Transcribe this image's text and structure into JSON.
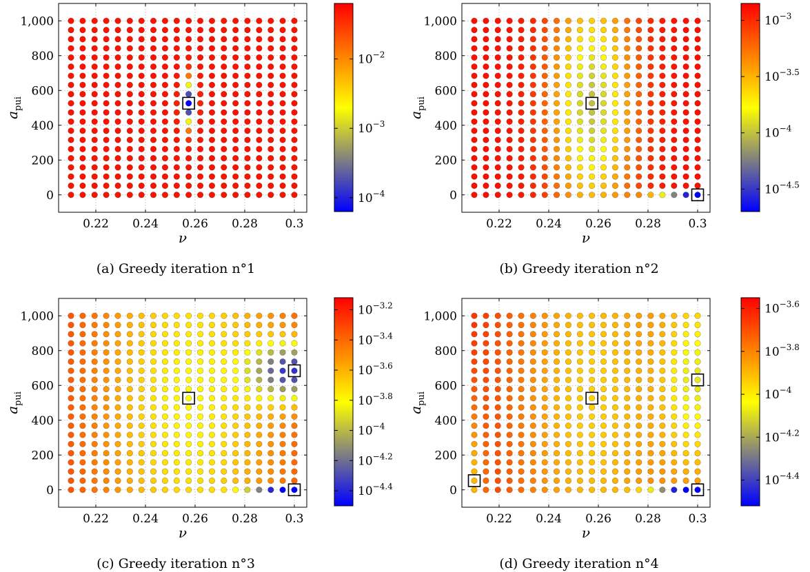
{
  "chart_data": [
    {
      "type": "scatter",
      "caption": "(a) Greedy iteration n°1",
      "xlabel": "ν",
      "ylabel_main": "a",
      "ylabel_sub": "pui",
      "xlim": [
        0.205,
        0.305
      ],
      "ylim": [
        -100,
        1100
      ],
      "xticks": [
        "0.22",
        "0.24",
        "0.26",
        "0.28",
        "0.3"
      ],
      "xtick_values": [
        0.22,
        0.24,
        0.26,
        0.28,
        0.3
      ],
      "yticks": [
        "0",
        "200",
        "400",
        "600",
        "800",
        "1,000"
      ],
      "ytick_values": [
        0,
        200,
        400,
        600,
        800,
        1000
      ],
      "grid": true,
      "x": [
        0.21,
        0.2147,
        0.2195,
        0.2242,
        0.2289,
        0.2337,
        0.2384,
        0.2432,
        0.2479,
        0.2526,
        0.2574,
        0.2621,
        0.2668,
        0.2716,
        0.2763,
        0.2811,
        0.2858,
        0.2905,
        0.2953,
        0.3
      ],
      "y": [
        0,
        52.6,
        105.3,
        157.9,
        210.5,
        263.2,
        315.8,
        368.4,
        421.1,
        473.7,
        526.3,
        578.9,
        631.6,
        684.2,
        736.8,
        789.5,
        842.1,
        894.7,
        947.4,
        1000
      ],
      "colorbar": {
        "log_min": -4.2,
        "log_max": -1.2,
        "ticks": [
          -4,
          -3,
          -2
        ]
      },
      "error_model": {
        "base": -1.3,
        "dips": [
          {
            "x": 0.2574,
            "y": 526.3,
            "depth": 2.9,
            "sx": 0.0018,
            "sy": 8000
          }
        ]
      },
      "selected_points": [
        {
          "x": 0.2574,
          "y": 526.3
        }
      ]
    },
    {
      "type": "scatter",
      "caption": "(b) Greedy iteration n°2",
      "xlabel": "ν",
      "ylabel_main": "a",
      "ylabel_sub": "pui",
      "xlim": [
        0.205,
        0.305
      ],
      "ylim": [
        -100,
        1100
      ],
      "xticks": [
        "0.22",
        "0.24",
        "0.26",
        "0.28",
        "0.3"
      ],
      "xtick_values": [
        0.22,
        0.24,
        0.26,
        0.28,
        0.3
      ],
      "yticks": [
        "0",
        "200",
        "400",
        "600",
        "800",
        "1,000"
      ],
      "ytick_values": [
        0,
        200,
        400,
        600,
        800,
        1000
      ],
      "grid": true,
      "x": [
        0.21,
        0.2147,
        0.2195,
        0.2242,
        0.2289,
        0.2337,
        0.2384,
        0.2432,
        0.2479,
        0.2526,
        0.2574,
        0.2621,
        0.2668,
        0.2716,
        0.2763,
        0.2811,
        0.2858,
        0.2905,
        0.2953,
        0.3
      ],
      "y": [
        0,
        52.6,
        105.3,
        157.9,
        210.5,
        263.2,
        315.8,
        368.4,
        421.1,
        473.7,
        526.3,
        578.9,
        631.6,
        684.2,
        736.8,
        789.5,
        842.1,
        894.7,
        947.4,
        1000
      ],
      "colorbar": {
        "log_min": -4.7,
        "log_max": -2.85,
        "ticks": [
          -4.5,
          -4,
          -3.5,
          -3
        ]
      },
      "error_model": {
        "base": -2.9,
        "dips": [
          {
            "x": 0.2574,
            "y": 526.3,
            "depth": 1.1,
            "sx": 0.012,
            "sy": 250000
          },
          {
            "x": 0.3,
            "y": 0,
            "depth": 1.8,
            "sx": 0.012,
            "sy": 200
          }
        ]
      },
      "selected_points": [
        {
          "x": 0.2574,
          "y": 526.3
        },
        {
          "x": 0.3,
          "y": 0
        }
      ]
    },
    {
      "type": "scatter",
      "caption": "(c) Greedy iteration n°3",
      "xlabel": "ν",
      "ylabel_main": "a",
      "ylabel_sub": "pui",
      "xlim": [
        0.205,
        0.305
      ],
      "ylim": [
        -100,
        1100
      ],
      "xticks": [
        "0.22",
        "0.24",
        "0.26",
        "0.28",
        "0.3"
      ],
      "xtick_values": [
        0.22,
        0.24,
        0.26,
        0.28,
        0.3
      ],
      "yticks": [
        "0",
        "200",
        "400",
        "600",
        "800",
        "1,000"
      ],
      "ytick_values": [
        0,
        200,
        400,
        600,
        800,
        1000
      ],
      "grid": true,
      "x": [
        0.21,
        0.2147,
        0.2195,
        0.2242,
        0.2289,
        0.2337,
        0.2384,
        0.2432,
        0.2479,
        0.2526,
        0.2574,
        0.2621,
        0.2668,
        0.2716,
        0.2763,
        0.2811,
        0.2858,
        0.2905,
        0.2953,
        0.3
      ],
      "y": [
        0,
        52.6,
        105.3,
        157.9,
        210.5,
        263.2,
        315.8,
        368.4,
        421.1,
        473.7,
        526.3,
        578.9,
        631.6,
        684.2,
        736.8,
        789.5,
        842.1,
        894.7,
        947.4,
        1000
      ],
      "colorbar": {
        "log_min": -4.5,
        "log_max": -3.12,
        "ticks": [
          -4.4,
          -4.2,
          -4,
          -3.8,
          -3.6,
          -3.4,
          -3.2
        ]
      },
      "error_model": {
        "base": -3.2,
        "dips": [
          {
            "x": 0.2574,
            "y": 526.3,
            "depth": 0.6,
            "sx": 0.03,
            "sy": 900000
          },
          {
            "x": 0.3,
            "y": 684.2,
            "depth": 0.95,
            "sx": 0.012,
            "sy": 15000
          },
          {
            "x": 0.3,
            "y": 0,
            "depth": 1.25,
            "sx": 0.012,
            "sy": 300
          }
        ]
      },
      "selected_points": [
        {
          "x": 0.2574,
          "y": 526.3
        },
        {
          "x": 0.3,
          "y": 684.2
        },
        {
          "x": 0.3,
          "y": 0
        }
      ]
    },
    {
      "type": "scatter",
      "caption": "(d) Greedy iteration n°4",
      "xlabel": "ν",
      "ylabel_main": "a",
      "ylabel_sub": "pui",
      "xlim": [
        0.205,
        0.305
      ],
      "ylim": [
        -100,
        1100
      ],
      "xticks": [
        "0.22",
        "0.24",
        "0.26",
        "0.28",
        "0.3"
      ],
      "xtick_values": [
        0.22,
        0.24,
        0.26,
        0.28,
        0.3
      ],
      "yticks": [
        "0",
        "200",
        "400",
        "600",
        "800",
        "1,000"
      ],
      "ytick_values": [
        0,
        200,
        400,
        600,
        800,
        1000
      ],
      "grid": true,
      "x": [
        0.21,
        0.2147,
        0.2195,
        0.2242,
        0.2289,
        0.2337,
        0.2384,
        0.2432,
        0.2479,
        0.2526,
        0.2574,
        0.2621,
        0.2668,
        0.2716,
        0.2763,
        0.2811,
        0.2858,
        0.2905,
        0.2953,
        0.3
      ],
      "y": [
        0,
        52.6,
        105.3,
        157.9,
        210.5,
        263.2,
        315.8,
        368.4,
        421.1,
        473.7,
        526.3,
        578.9,
        631.6,
        684.2,
        736.8,
        789.5,
        842.1,
        894.7,
        947.4,
        1000
      ],
      "colorbar": {
        "log_min": -4.52,
        "log_max": -3.55,
        "ticks": [
          -4.4,
          -4.2,
          -4,
          -3.8,
          -3.6
        ]
      },
      "error_model": {
        "base": -3.6,
        "dips": [
          {
            "x": 0.2574,
            "y": 526.3,
            "depth": 0.35,
            "sx": 0.025,
            "sy": 900000
          },
          {
            "x": 0.3,
            "y": 631.6,
            "depth": 0.4,
            "sx": 0.01,
            "sy": 200000
          },
          {
            "x": 0.21,
            "y": 52.6,
            "depth": 0.25,
            "sx": 0.003,
            "sy": 100000
          },
          {
            "x": 0.3,
            "y": 0,
            "depth": 0.88,
            "sx": 0.012,
            "sy": 250
          }
        ]
      },
      "selected_points": [
        {
          "x": 0.2574,
          "y": 526.3
        },
        {
          "x": 0.3,
          "y": 631.6
        },
        {
          "x": 0.21,
          "y": 52.6
        },
        {
          "x": 0.3,
          "y": 0
        }
      ]
    }
  ]
}
